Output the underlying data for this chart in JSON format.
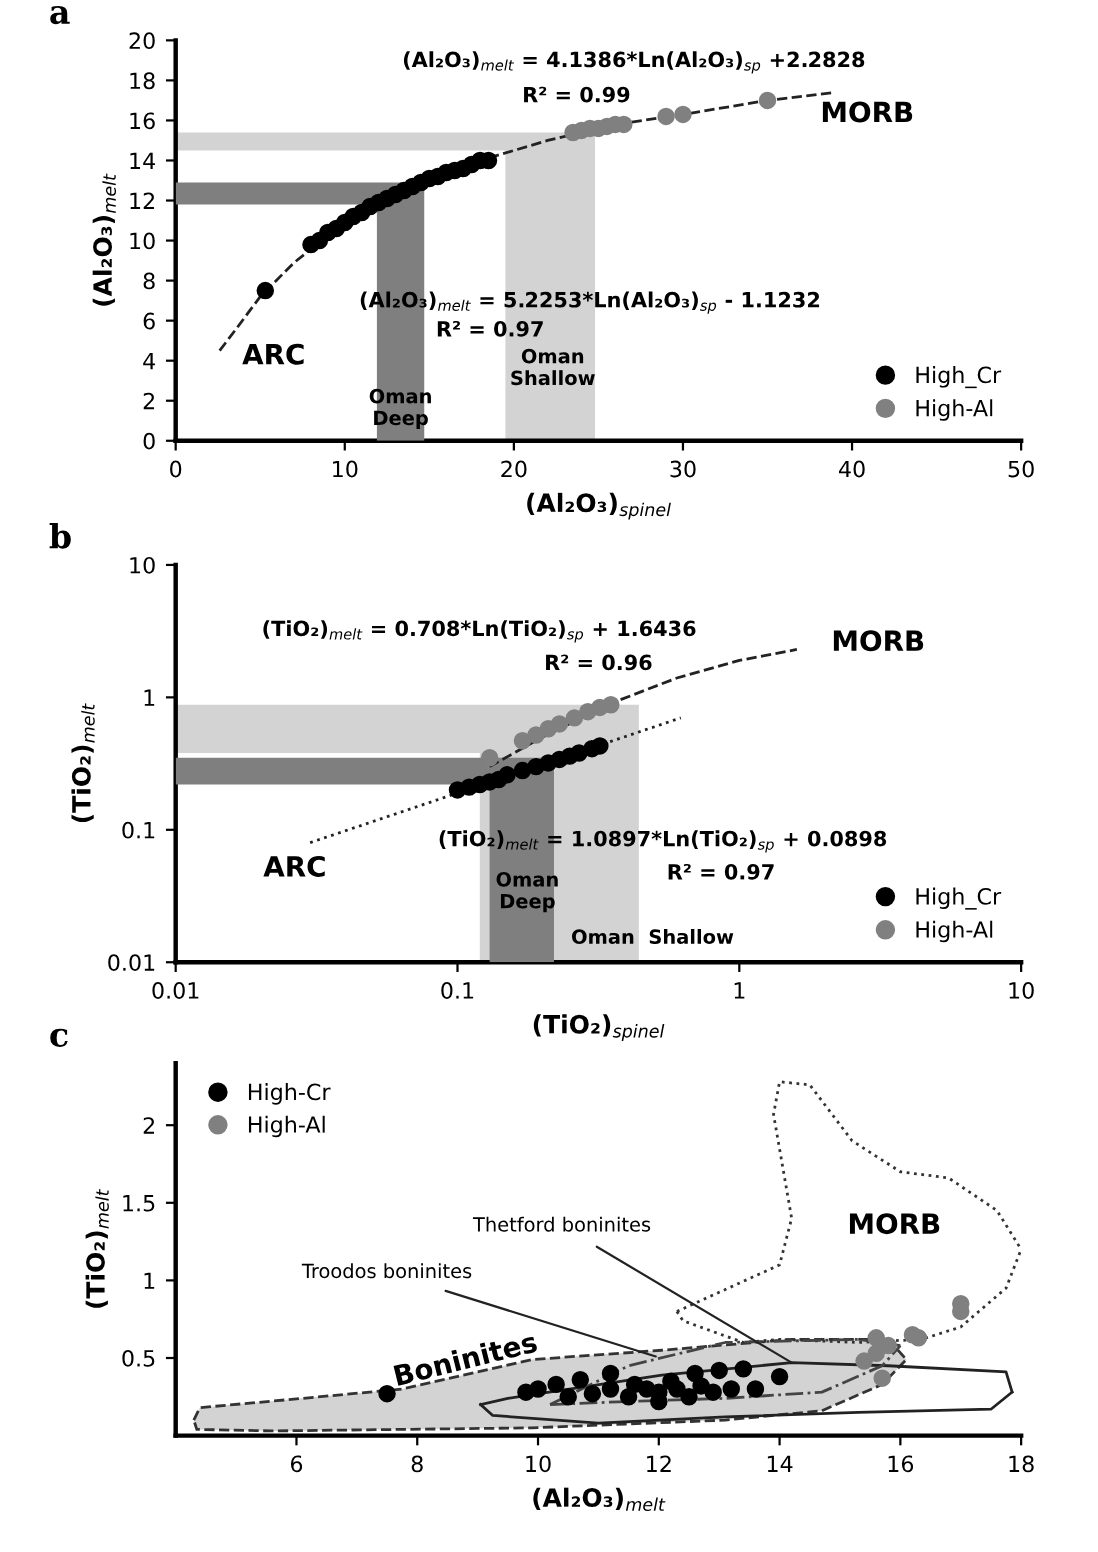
{
  "chart_data": [
    {
      "type": "scatter",
      "title": "a",
      "xlabel": "(Al₂O₃)$_{spinel}$",
      "ylabel": "(Al₂O₃)$_{melt}$",
      "xlim": [
        0,
        50
      ],
      "ylim": [
        0,
        20
      ],
      "xticks": [
        0,
        10,
        20,
        30,
        40,
        50
      ],
      "yticks": [
        0,
        2,
        4,
        6,
        8,
        10,
        12,
        14,
        16,
        18,
        20
      ],
      "grid": false,
      "legend": "lower right",
      "series": [
        {
          "type": "area",
          "color": "#d3d3d3",
          "x": [
            0,
            19.5,
            19.5,
            24.8,
            24.8,
            0
          ],
          "values": [
            14.5,
            14.5,
            0,
            0,
            15.4,
            15.4
          ]
        },
        {
          "type": "area",
          "color": "#7f7f7f",
          "x": [
            0,
            11.9,
            11.9,
            14.7,
            14.7,
            0
          ],
          "values": [
            11.8,
            11.8,
            0,
            0,
            12.9,
            12.9
          ]
        },
        {
          "type": "line",
          "color": "#222222",
          "line_style": "dashed",
          "marker": "none",
          "x": [
            2.6,
            3.5,
            5,
            7,
            10,
            14,
            18,
            22,
            26,
            30,
            35,
            39
          ],
          "values": [
            4.5,
            5.5,
            7.2,
            8.9,
            10.9,
            12.7,
            14,
            15,
            15.8,
            16.3,
            17,
            17.4
          ]
        },
        {
          "name": "High_Cr",
          "color": "#000000",
          "marker": "circle",
          "x": [
            5.3,
            8,
            8.5,
            9,
            9.5,
            10,
            10.5,
            11,
            11.5,
            12,
            12.5,
            13,
            13.5,
            14,
            14.5,
            15,
            15.5,
            16,
            16.5,
            17,
            17.5,
            18,
            18.5
          ],
          "values": [
            7.5,
            9.8,
            10,
            10.4,
            10.6,
            10.9,
            11.2,
            11.4,
            11.7,
            11.9,
            12.1,
            12.3,
            12.5,
            12.7,
            12.9,
            13.1,
            13.2,
            13.4,
            13.5,
            13.6,
            13.8,
            14,
            14
          ]
        },
        {
          "name": "High-Al",
          "color": "#808080",
          "marker": "circle",
          "x": [
            23.5,
            24,
            24.5,
            25,
            25.5,
            26,
            26.5,
            29,
            30,
            35
          ],
          "values": [
            15.4,
            15.5,
            15.6,
            15.6,
            15.7,
            15.8,
            15.8,
            16.2,
            16.3,
            17
          ]
        }
      ],
      "annotations": [
        "(Al₂O₃)$_{melt}$ = 4.1386*Ln(Al₂O₃)$_{sp}$ +2.2828",
        "R² = 0.99",
        "(Al₂O₃)$_{melt}$ = 5.2253*Ln(Al₂O₃)$_{sp}$ - 1.1232",
        "R² = 0.97",
        "ARC",
        "MORB",
        "Oman\nDeep",
        "Oman\nShallow"
      ]
    },
    {
      "type": "scatter",
      "title": "b",
      "xlabel": "(TiO₂)$_{spinel}$",
      "ylabel": "(TiO₂)$_{melt}$",
      "log": "xy",
      "xlim": [
        0.01,
        10
      ],
      "ylim": [
        0.01,
        10
      ],
      "xticks": [
        0.01,
        0.1,
        1,
        10
      ],
      "yticks": [
        0.01,
        0.1,
        1,
        10
      ],
      "grid": false,
      "legend": "lower right",
      "series": [
        {
          "type": "area",
          "color": "#d3d3d3",
          "x": [
            0.01,
            0.12,
            0.12,
            0.44,
            0.44,
            0.01
          ],
          "values": [
            0.38,
            0.38,
            0.01,
            0.01,
            0.88,
            0.88
          ]
        },
        {
          "type": "area",
          "color": "#7f7f7f",
          "x": [
            0.01,
            0.13,
            0.13,
            0.22,
            0.22,
            0.01
          ],
          "values": [
            0.22,
            0.22,
            0.01,
            0.01,
            0.35,
            0.35
          ]
        },
        {
          "type": "line",
          "color": "#222222",
          "line_style": "dotted",
          "marker": "none",
          "x": [
            0.03,
            0.62
          ],
          "values": [
            0.08,
            0.7
          ]
        },
        {
          "type": "line",
          "color": "#222222",
          "line_style": "dashed",
          "marker": "none",
          "x": [
            0.13,
            0.2,
            0.35,
            0.6,
            1,
            1.6
          ],
          "values": [
            0.3,
            0.5,
            0.9,
            1.4,
            1.9,
            2.3
          ]
        },
        {
          "name": "High_Cr",
          "color": "#000000",
          "marker": "circle",
          "x": [
            0.1,
            0.11,
            0.12,
            0.13,
            0.14,
            0.15,
            0.17,
            0.19,
            0.21,
            0.23,
            0.25,
            0.27,
            0.3,
            0.32
          ],
          "values": [
            0.2,
            0.21,
            0.22,
            0.23,
            0.24,
            0.26,
            0.28,
            0.3,
            0.32,
            0.34,
            0.36,
            0.38,
            0.41,
            0.43
          ]
        },
        {
          "name": "High-Al",
          "color": "#808080",
          "marker": "circle",
          "x": [
            0.13,
            0.17,
            0.19,
            0.21,
            0.23,
            0.26,
            0.29,
            0.32,
            0.35
          ],
          "values": [
            0.35,
            0.47,
            0.52,
            0.58,
            0.63,
            0.7,
            0.78,
            0.84,
            0.88
          ]
        }
      ],
      "annotations": [
        "(TiO₂)$_{melt}$ = 0.708*Ln(TiO₂)$_{sp}$ + 1.6436",
        "R² = 0.96",
        "(TiO₂)$_{melt}$ = 1.0897*Ln(TiO₂)$_{sp}$ + 0.0898",
        "R² = 0.97",
        "MORB",
        "ARC",
        "Oman\nDeep",
        "Oman  Shallow"
      ]
    },
    {
      "type": "scatter",
      "title": "c",
      "xlabel": "(Al₂O₃)$_{melt}$",
      "ylabel": "(TiO₂)$_{melt}$",
      "xlim": [
        4,
        18
      ],
      "ylim": [
        0,
        2.4
      ],
      "xticks": [
        6,
        8,
        10,
        12,
        14,
        16,
        18
      ],
      "yticks": [
        0.5,
        1,
        1.5,
        2
      ],
      "grid": false,
      "legend": "upper left",
      "series": [
        {
          "type": "area",
          "color": "#d3d3d3",
          "line_style": "dashed",
          "x": [
            4.3,
            4.4,
            6.1,
            7.75,
            9.9,
            12.05,
            14.2,
            15.8,
            16.1,
            15.7,
            14.7,
            13.1,
            9.9,
            5.6,
            4.35,
            4.3
          ],
          "values": [
            0.1,
            0.18,
            0.24,
            0.3,
            0.49,
            0.55,
            0.62,
            0.62,
            0.49,
            0.33,
            0.16,
            0.1,
            0.05,
            0.03,
            0.04,
            0.1
          ]
        },
        {
          "type": "line",
          "color": "#333333",
          "line_style": "dotted",
          "marker": "none",
          "x": [
            12.3,
            12.4,
            13.4,
            14,
            15.3,
            16.35,
            17,
            17.75,
            18
          ],
          "values": [
            0.8,
            0.74,
            0.6,
            0.62,
            0.6,
            0.62,
            0.7,
            0.95,
            1.2
          ]
        },
        {
          "type": "line",
          "color": "#333333",
          "line_style": "dotted",
          "marker": "none",
          "x": [
            12.3,
            14,
            14.2,
            13.9,
            14,
            14.5,
            15.2,
            16,
            16.8,
            17.6,
            18
          ],
          "values": [
            0.8,
            1.1,
            1.4,
            2.07,
            2.28,
            2.26,
            1.9,
            1.7,
            1.66,
            1.45,
            1.2
          ]
        },
        {
          "type": "line",
          "color": "#222222",
          "line_style": "solid",
          "marker": "none",
          "x": [
            9.05,
            9.5,
            12.05,
            14.2,
            15.8,
            17.75,
            17.85
          ],
          "values": [
            0.2,
            0.24,
            0.39,
            0.47,
            0.45,
            0.41,
            0.28
          ]
        },
        {
          "type": "line",
          "color": "#222222",
          "line_style": "solid",
          "marker": "none",
          "x": [
            9.05,
            9.25,
            11,
            13.1,
            15.3,
            17.5,
            17.85
          ],
          "values": [
            0.2,
            0.13,
            0.08,
            0.12,
            0.15,
            0.17,
            0.28
          ]
        },
        {
          "type": "line",
          "color": "#444444",
          "line_style": "dashdot",
          "marker": "none",
          "x": [
            10.2,
            11.5,
            13.1,
            15.3,
            16
          ],
          "values": [
            0.2,
            0.45,
            0.6,
            0.62,
            0.58
          ]
        },
        {
          "type": "line",
          "color": "#444444",
          "line_style": "dashdot",
          "marker": "none",
          "x": [
            10.2,
            11.5,
            13.1,
            14.7,
            15.7,
            16
          ],
          "values": [
            0.2,
            0.22,
            0.24,
            0.28,
            0.45,
            0.58
          ]
        },
        {
          "name": "High-Cr",
          "color": "#000000",
          "marker": "circle",
          "x": [
            7.5,
            9.8,
            10,
            10.3,
            10.5,
            10.7,
            10.9,
            11.2,
            11.2,
            11.5,
            11.6,
            11.8,
            12,
            12,
            12.2,
            12.3,
            12.5,
            12.6,
            12.7,
            12.9,
            13,
            13.2,
            13.4,
            13.6,
            14
          ],
          "values": [
            0.27,
            0.28,
            0.3,
            0.33,
            0.25,
            0.36,
            0.27,
            0.4,
            0.3,
            0.25,
            0.33,
            0.3,
            0.22,
            0.28,
            0.35,
            0.3,
            0.25,
            0.4,
            0.32,
            0.28,
            0.42,
            0.3,
            0.43,
            0.3,
            0.38
          ]
        },
        {
          "name": "High-Al",
          "color": "#808080",
          "marker": "circle",
          "x": [
            15.4,
            15.6,
            15.6,
            15.7,
            15.8,
            16.2,
            16.3,
            17,
            17
          ],
          "values": [
            0.48,
            0.53,
            0.63,
            0.37,
            0.58,
            0.65,
            0.63,
            0.8,
            0.85
          ]
        }
      ],
      "annotations": [
        {
          "text": "Thetford boninites",
          "x": 14.2,
          "y": 0.47
        },
        {
          "text": "Troodos boninites",
          "x": 11.95,
          "y": 0.51
        },
        "MORB",
        "Boninites"
      ]
    }
  ]
}
